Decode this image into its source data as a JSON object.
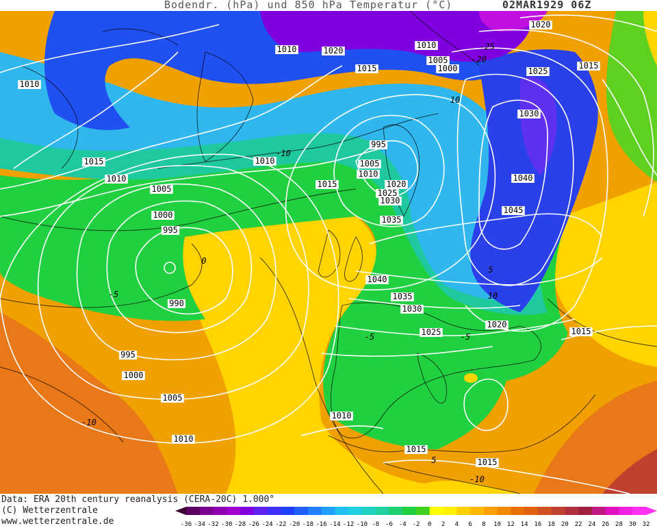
{
  "header": {
    "title": "Bodendr. (hPa) und 850 hPa Temperatur (°C)",
    "date": "02MAR1929 06Z"
  },
  "footer": {
    "data_source": "Data: ERA 20th century reanalysis (CERA-20C) 1.000°",
    "copyright": "(C) Wetterzentrale",
    "website": "www.wetterzentrale.de"
  },
  "colors": {
    "purple": "#7a00d8",
    "blue": "#2040ff",
    "cyan": "#20c0e0",
    "teal": "#20c8a0",
    "green": "#20d040",
    "yellow": "#ffe000",
    "orange": "#ffa000",
    "dark_orange": "#e86010",
    "isobar": "#ffffff",
    "isotherm": "#000000"
  },
  "color_scale": {
    "labels": [
      "-36",
      "-34",
      "-32",
      "-30",
      "-28",
      "-26",
      "-24",
      "-22",
      "-20",
      "-18",
      "-16",
      "-14",
      "-12",
      "-10",
      "-8",
      "-6",
      "-4",
      "-2",
      "0",
      "2",
      "4",
      "6",
      "8",
      "10",
      "12",
      "14",
      "16",
      "18",
      "20",
      "22",
      "24",
      "26",
      "28",
      "30",
      "32"
    ],
    "colors": [
      "#3a0030",
      "#5a0060",
      "#7a0090",
      "#9000b0",
      "#a000d0",
      "#8000e0",
      "#6020f0",
      "#4030ff",
      "#2040ff",
      "#2060ff",
      "#2080ff",
      "#20a0ff",
      "#20c0f0",
      "#20d0e0",
      "#20d0c0",
      "#20d0a0",
      "#20d070",
      "#20d040",
      "#40d020",
      "#ffff00",
      "#fff000",
      "#ffd000",
      "#ffb800",
      "#ffa000",
      "#f08800",
      "#e87000",
      "#e06010",
      "#d05020",
      "#c04030",
      "#b03040",
      "#a02040",
      "#c01880",
      "#e010c0",
      "#f020e0",
      "#ff30f0"
    ]
  },
  "isobar_labels": [
    {
      "text": "1010"
    },
    {
      "text": "1020"
    },
    {
      "text": "1010"
    },
    {
      "text": "1005"
    },
    {
      "text": "1000"
    },
    {
      "text": "1015"
    },
    {
      "text": "1020"
    },
    {
      "text": "1025"
    },
    {
      "text": "1015"
    },
    {
      "text": "1030"
    },
    {
      "text": "1010"
    },
    {
      "text": "1015"
    },
    {
      "text": "1010"
    },
    {
      "text": "995"
    },
    {
      "text": "1010"
    },
    {
      "text": "1005"
    },
    {
      "text": "1010"
    },
    {
      "text": "1015"
    },
    {
      "text": "1005"
    },
    {
      "text": "1020"
    },
    {
      "text": "1025"
    },
    {
      "text": "1030"
    },
    {
      "text": "1040"
    },
    {
      "text": "1000"
    },
    {
      "text": "995"
    },
    {
      "text": "1035"
    },
    {
      "text": "1045"
    },
    {
      "text": "990"
    },
    {
      "text": "1040"
    },
    {
      "text": "1035"
    },
    {
      "text": "1030"
    },
    {
      "text": "1020"
    },
    {
      "text": "1025"
    },
    {
      "text": "1015"
    },
    {
      "text": "995"
    },
    {
      "text": "1000"
    },
    {
      "text": "1005"
    },
    {
      "text": "1010"
    },
    {
      "text": "1010"
    },
    {
      "text": "1015"
    },
    {
      "text": "1015"
    }
  ],
  "isotherm_labels": [
    {
      "text": "-25"
    },
    {
      "text": "-20"
    },
    {
      "text": "-10"
    },
    {
      "text": "-5"
    },
    {
      "text": "0"
    },
    {
      "text": "-5"
    },
    {
      "text": "-10"
    },
    {
      "text": "5"
    },
    {
      "text": "-5"
    },
    {
      "text": "-10"
    },
    {
      "text": "5"
    },
    {
      "text": "10"
    },
    {
      "text": "10"
    }
  ]
}
